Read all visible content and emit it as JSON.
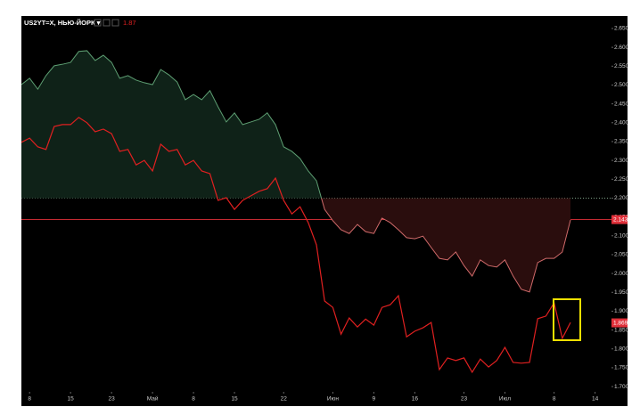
{
  "chart_data": {
    "type": "line",
    "title": "US2YT=X, НЬЮ-ЙОРК ▾",
    "header_value": "1.87",
    "xlim": [
      0,
      72
    ],
    "xticks": [
      {
        "value": 1,
        "label": "8"
      },
      {
        "value": 6,
        "label": "15"
      },
      {
        "value": 11,
        "label": "23"
      },
      {
        "value": 16,
        "label": "Май"
      },
      {
        "value": 21,
        "label": "8"
      },
      {
        "value": 26,
        "label": "15"
      },
      {
        "value": 32,
        "label": "22"
      },
      {
        "value": 38,
        "label": "Июн"
      },
      {
        "value": 43,
        "label": "9"
      },
      {
        "value": 48,
        "label": "16"
      },
      {
        "value": 54,
        "label": "23"
      },
      {
        "value": 59,
        "label": "Июл"
      },
      {
        "value": 65,
        "label": "8"
      },
      {
        "value": 70,
        "label": "14"
      }
    ],
    "ylim": [
      1.686,
      2.683
    ],
    "yticks": [
      {
        "value": 2.65,
        "label": "2.650"
      },
      {
        "value": 2.6,
        "label": "2.600"
      },
      {
        "value": 2.55,
        "label": "2.550"
      },
      {
        "value": 2.5,
        "label": "2.500"
      },
      {
        "value": 2.45,
        "label": "2.450"
      },
      {
        "value": 2.4,
        "label": "2.400"
      },
      {
        "value": 2.35,
        "label": "2.350"
      },
      {
        "value": 2.3,
        "label": "2.300"
      },
      {
        "value": 2.25,
        "label": "2.250"
      },
      {
        "value": 2.2,
        "label": "2.200"
      },
      {
        "value": 2.15,
        "label": "2.150"
      },
      {
        "value": 2.1,
        "label": "2.100"
      },
      {
        "value": 2.05,
        "label": "2.050"
      },
      {
        "value": 2.0,
        "label": "2.000"
      },
      {
        "value": 1.95,
        "label": "1.950"
      },
      {
        "value": 1.9,
        "label": "1.900"
      },
      {
        "value": 1.85,
        "label": "1.850"
      },
      {
        "value": 1.8,
        "label": "1.800"
      },
      {
        "value": 1.75,
        "label": "1.750"
      },
      {
        "value": 1.7,
        "label": "1.700"
      }
    ],
    "baseline": 2.2,
    "baseline_color": "#8fb89a",
    "x": [
      0,
      1,
      2,
      3,
      4,
      5,
      6,
      7,
      8,
      9,
      10,
      11,
      12,
      13,
      14,
      15,
      16,
      17,
      18,
      19,
      20,
      21,
      22,
      23,
      24,
      25,
      26,
      27,
      28,
      29,
      30,
      31,
      32,
      33,
      34,
      35,
      36,
      37,
      38,
      39,
      40,
      41,
      42,
      43,
      44,
      45,
      46,
      47,
      48,
      49,
      50,
      51,
      52,
      53,
      54,
      55,
      56,
      57,
      58,
      59,
      60,
      61,
      62,
      63,
      64,
      65,
      66,
      67
    ],
    "series": [
      {
        "color": "#5d9e72",
        "color_below": "#d06a6a",
        "fill": "#0f2218",
        "fill_below": "#2a0d0d",
        "values": [
          2.501,
          2.518,
          2.489,
          2.525,
          2.551,
          2.555,
          2.56,
          2.589,
          2.591,
          2.565,
          2.579,
          2.56,
          2.518,
          2.525,
          2.513,
          2.506,
          2.501,
          2.541,
          2.527,
          2.508,
          2.461,
          2.475,
          2.461,
          2.485,
          2.442,
          2.402,
          2.426,
          2.395,
          2.402,
          2.409,
          2.426,
          2.395,
          2.336,
          2.324,
          2.305,
          2.272,
          2.246,
          2.17,
          2.14,
          2.116,
          2.106,
          2.13,
          2.111,
          2.106,
          2.147,
          2.135,
          2.116,
          2.095,
          2.092,
          2.099,
          2.069,
          2.04,
          2.036,
          2.057,
          2.021,
          1.993,
          2.036,
          2.021,
          2.017,
          2.036,
          1.993,
          1.958,
          1.951,
          2.029,
          2.04,
          2.04,
          2.057,
          2.142
        ]
      },
      {
        "color": "#e02020",
        "values": [
          2.348,
          2.359,
          2.336,
          2.329,
          2.39,
          2.395,
          2.395,
          2.414,
          2.4,
          2.376,
          2.383,
          2.371,
          2.324,
          2.329,
          2.288,
          2.3,
          2.272,
          2.343,
          2.324,
          2.329,
          2.288,
          2.3,
          2.272,
          2.265,
          2.194,
          2.201,
          2.17,
          2.194,
          2.206,
          2.218,
          2.225,
          2.253,
          2.194,
          2.158,
          2.177,
          2.135,
          2.076,
          1.927,
          1.91,
          1.839,
          1.882,
          1.858,
          1.879,
          1.863,
          1.91,
          1.917,
          1.941,
          1.832,
          1.847,
          1.856,
          1.87,
          1.745,
          1.776,
          1.769,
          1.776,
          1.738,
          1.773,
          1.752,
          1.769,
          1.804,
          1.764,
          1.762,
          1.764,
          1.88,
          1.887,
          1.922,
          1.828,
          1.87
        ]
      }
    ],
    "hlines": [
      {
        "value": 2.143,
        "color": "#e0303a",
        "line": true
      },
      {
        "value": 1.869,
        "color": "#e0303a",
        "line": false
      }
    ]
  }
}
